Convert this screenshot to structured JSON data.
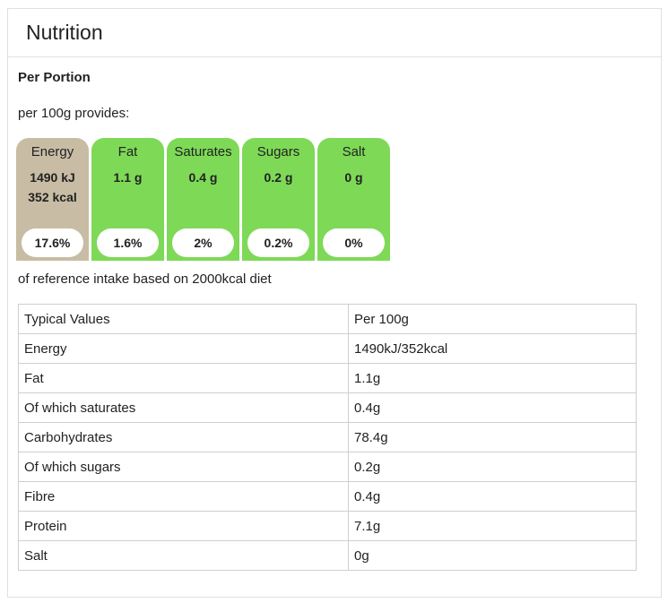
{
  "panel": {
    "title": "Nutrition"
  },
  "portion_title": "Per Portion",
  "provides": "per 100g provides:",
  "tiles": [
    {
      "label": "Energy",
      "value": "1490 kJ",
      "value2": "352 kcal",
      "percent": "17.6%",
      "color": "#c8bca4"
    },
    {
      "label": "Fat",
      "value": "1.1 g",
      "percent": "1.6%",
      "color": "#7ed957"
    },
    {
      "label": "Saturates",
      "value": "0.4 g",
      "percent": "2%",
      "color": "#7ed957"
    },
    {
      "label": "Sugars",
      "value": "0.2 g",
      "percent": "0.2%",
      "color": "#7ed957"
    },
    {
      "label": "Salt",
      "value": "0 g",
      "percent": "0%",
      "color": "#7ed957"
    }
  ],
  "reference_note": "of reference intake based on 2000kcal diet",
  "table": {
    "header": [
      "Typical Values",
      "Per 100g"
    ],
    "rows": [
      [
        "Energy",
        "1490kJ/352kcal"
      ],
      [
        "Fat",
        "1.1g"
      ],
      [
        "Of which saturates",
        "0.4g"
      ],
      [
        "Carbohydrates",
        "78.4g"
      ],
      [
        "Of which sugars",
        "0.2g"
      ],
      [
        "Fibre",
        "0.4g"
      ],
      [
        "Protein",
        "7.1g"
      ],
      [
        "Salt",
        "0g"
      ]
    ]
  }
}
